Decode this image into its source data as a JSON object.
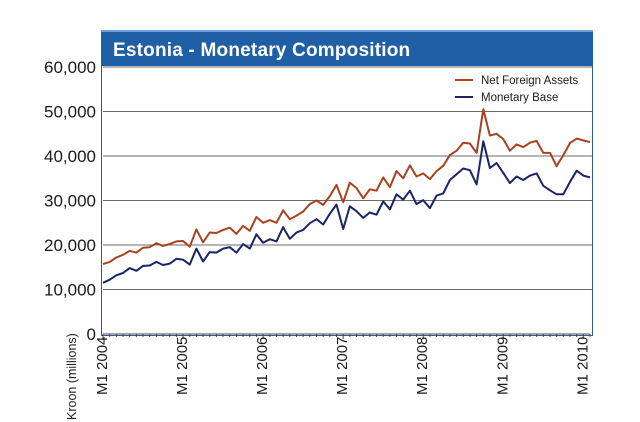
{
  "chart_data": {
    "type": "line",
    "title": "Estonia - Monetary Composition",
    "xlabel": "",
    "ylabel": "Kroon (millions)",
    "ylim": [
      0,
      60000
    ],
    "y_ticks": [
      "0",
      "10,000",
      "20,000",
      "30,000",
      "40,000",
      "50,000",
      "60,000"
    ],
    "y_tick_values": [
      0,
      10000,
      20000,
      30000,
      40000,
      50000,
      60000
    ],
    "x_tick_labels": [
      "M1 2004",
      "M1 2005",
      "M1 2006",
      "M1 2007",
      "M1 2008",
      "M1 2009",
      "M1 2010"
    ],
    "x_tick_index": [
      0,
      12,
      24,
      36,
      48,
      60,
      72
    ],
    "grid": "horizontal",
    "legend_position": "top-right",
    "series": [
      {
        "name": "Net Foreign Assets",
        "color": "#a8431e",
        "values": [
          15700,
          16200,
          17200,
          17800,
          18700,
          18300,
          19400,
          19500,
          20400,
          19800,
          20200,
          20800,
          20900,
          19600,
          23500,
          20600,
          22800,
          22700,
          23400,
          23900,
          22500,
          24300,
          23200,
          26300,
          25000,
          25600,
          25000,
          27800,
          25800,
          26600,
          27500,
          29200,
          30000,
          29000,
          31000,
          33500,
          29600,
          34000,
          32800,
          30500,
          32500,
          32200,
          35200,
          33000,
          36600,
          35000,
          37900,
          35400,
          36100,
          34800,
          36600,
          37800,
          40200,
          41200,
          43000,
          42800,
          40700,
          50500,
          44600,
          45000,
          43800,
          41200,
          42600,
          42000,
          43000,
          43400,
          40700,
          40700,
          37700,
          40200,
          42900,
          43900,
          43500,
          43100
        ]
      },
      {
        "name": "Monetary Base",
        "color": "#1a2466",
        "values": [
          11500,
          12200,
          13200,
          13700,
          14800,
          14200,
          15300,
          15400,
          16200,
          15500,
          15800,
          16900,
          16700,
          15600,
          19200,
          16300,
          18400,
          18300,
          19200,
          19500,
          18300,
          20200,
          19200,
          22400,
          20500,
          21300,
          20800,
          24000,
          21400,
          22800,
          23400,
          24900,
          25800,
          24600,
          27000,
          29100,
          23600,
          28700,
          27600,
          26100,
          27300,
          26800,
          29800,
          28000,
          31400,
          30200,
          32200,
          29200,
          30100,
          28300,
          31100,
          31600,
          34600,
          35900,
          37200,
          36800,
          33600,
          43300,
          37300,
          38400,
          36200,
          33900,
          35400,
          34600,
          35600,
          36100,
          33300,
          32300,
          31400,
          31400,
          34200,
          36700,
          35600,
          35200
        ]
      }
    ]
  }
}
